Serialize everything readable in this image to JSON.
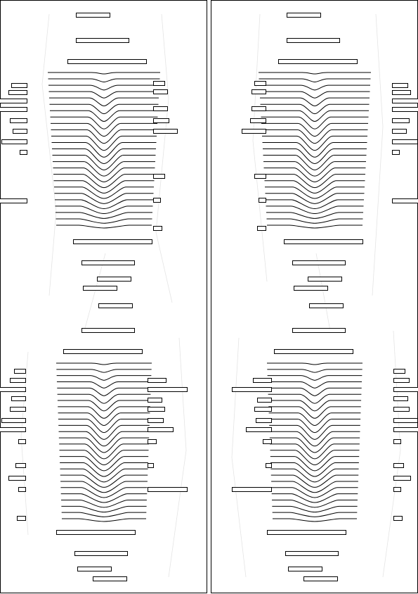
{
  "page": {
    "background": "#ffffff",
    "ink": "#000000",
    "guide_color": "#e4e4e4"
  },
  "panels": [
    {
      "id": "left",
      "groups": [
        "upper",
        "lower"
      ]
    },
    {
      "id": "right",
      "groups": [
        "upper",
        "lower"
      ]
    }
  ],
  "motif": {
    "description_free": true,
    "contour_line_count_upper": 25,
    "contour_line_count_lower": 26
  }
}
